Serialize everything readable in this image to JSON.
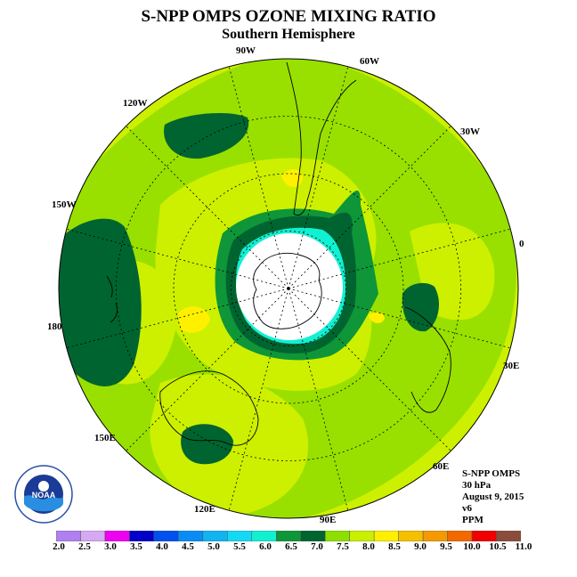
{
  "title": "S-NPP OMPS OZONE MIXING RATIO",
  "subtitle": "Southern Hemisphere",
  "longitude_labels": [
    "90W",
    "60W",
    "30W",
    "0",
    "30E",
    "60E",
    "90E",
    "120E",
    "150E",
    "180",
    "150W",
    "120W"
  ],
  "info": {
    "instrument": "S-NPP OMPS",
    "pressure": "30 hPa",
    "date": "August 9, 2015",
    "version": "v6",
    "unit": "PPM"
  },
  "logo_text": "NOAA",
  "colorbar": {
    "ticks": [
      "2.0",
      "2.5",
      "3.0",
      "3.5",
      "4.0",
      "4.5",
      "5.0",
      "5.5",
      "6.0",
      "6.5",
      "7.0",
      "7.5",
      "8.0",
      "8.5",
      "9.0",
      "9.5",
      "10.0",
      "10.5",
      "11.0"
    ],
    "colors": [
      "#b07ff0",
      "#d6a9f4",
      "#f000f0",
      "#0000c8",
      "#0050f0",
      "#0a8cf5",
      "#10b4f0",
      "#14d8f4",
      "#12f0d2",
      "#0e9638",
      "#006430",
      "#8ee000",
      "#c8f000",
      "#fff000",
      "#f4c000",
      "#f49a00",
      "#f46800",
      "#f00000",
      "#8c4c3c"
    ]
  },
  "map_colors": {
    "ocean_base": "#ccf000",
    "band_7_5": "#99e000",
    "band_7_0": "#0e9638",
    "band_6_5": "#006430",
    "band_8_5": "#fff000",
    "band_6_0": "#12f0d2",
    "no_data": "#ffffff"
  }
}
